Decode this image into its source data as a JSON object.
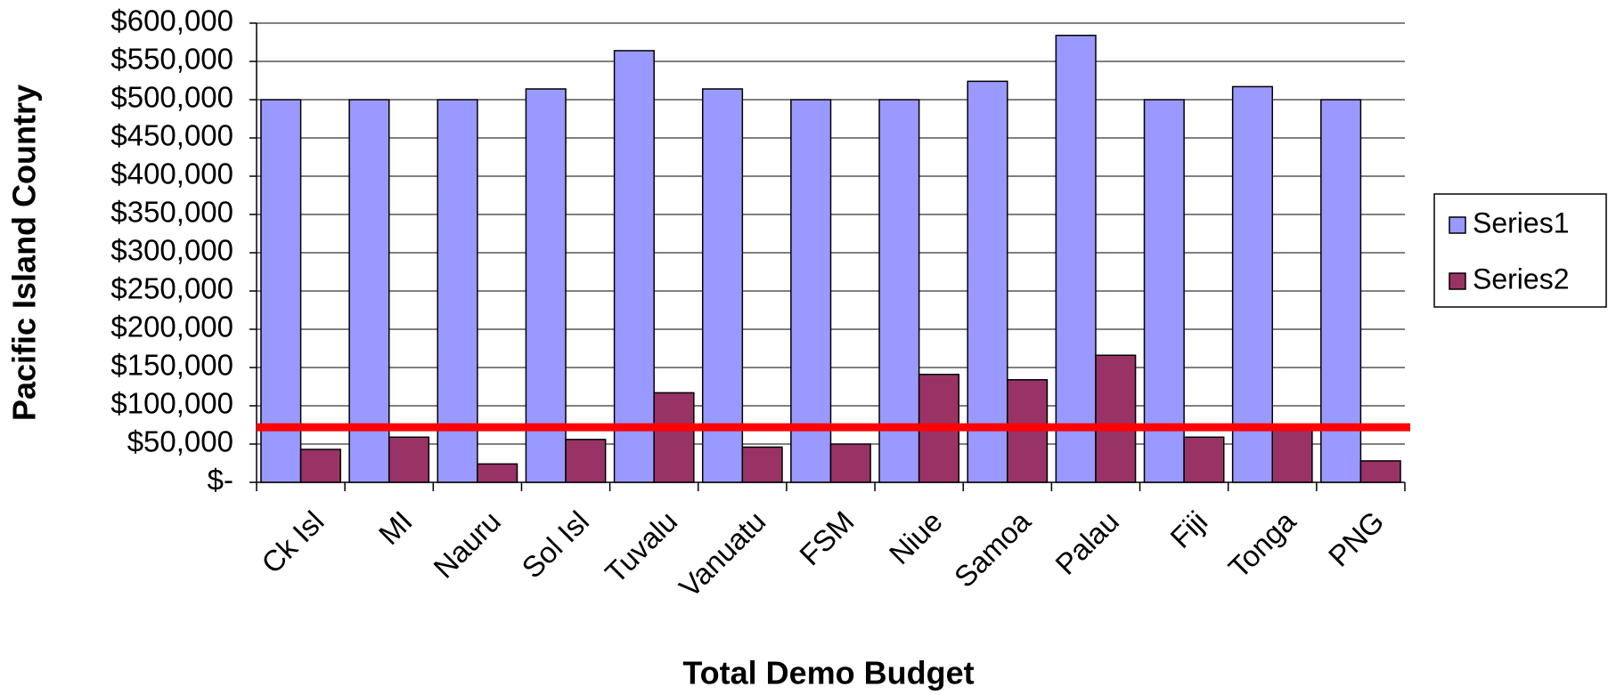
{
  "chart_data": {
    "type": "bar",
    "x_label": "Total Demo Budget",
    "y_label": "Pacific Island Country",
    "categories": [
      "Ck Isl",
      "MI",
      "Nauru",
      "Sol Isl",
      "Tuvalu",
      "Vanuatu",
      "FSM",
      "Niue",
      "Samoa",
      "Palau",
      "Fiji",
      "Tonga",
      "PNG"
    ],
    "series": [
      {
        "name": "Series1",
        "color": "#9999ff",
        "values": [
          500000,
          500000,
          500000,
          514000,
          564000,
          514000,
          500000,
          500000,
          524000,
          584000,
          500000,
          517000,
          500000
        ]
      },
      {
        "name": "Series2",
        "color": "#993366",
        "values": [
          43000,
          59000,
          24000,
          56000,
          117000,
          46000,
          50000,
          141000,
          134000,
          166000,
          59000,
          72000,
          28000
        ]
      }
    ],
    "reference_line": {
      "value": 72000,
      "color": "#ff0000"
    },
    "ylim": [
      0,
      600000
    ],
    "yticks": [
      {
        "value": 0,
        "label": "$-"
      },
      {
        "value": 50000,
        "label": "$50,000"
      },
      {
        "value": 100000,
        "label": "$100,000"
      },
      {
        "value": 150000,
        "label": "$150,000"
      },
      {
        "value": 200000,
        "label": "$200,000"
      },
      {
        "value": 250000,
        "label": "$250,000"
      },
      {
        "value": 300000,
        "label": "$300,000"
      },
      {
        "value": 350000,
        "label": "$350,000"
      },
      {
        "value": 400000,
        "label": "$400,000"
      },
      {
        "value": 450000,
        "label": "$450,000"
      },
      {
        "value": 500000,
        "label": "$500,000"
      },
      {
        "value": 550000,
        "label": "$550,000"
      },
      {
        "value": 600000,
        "label": "$600,000"
      }
    ],
    "grid": true,
    "legend": "right"
  }
}
